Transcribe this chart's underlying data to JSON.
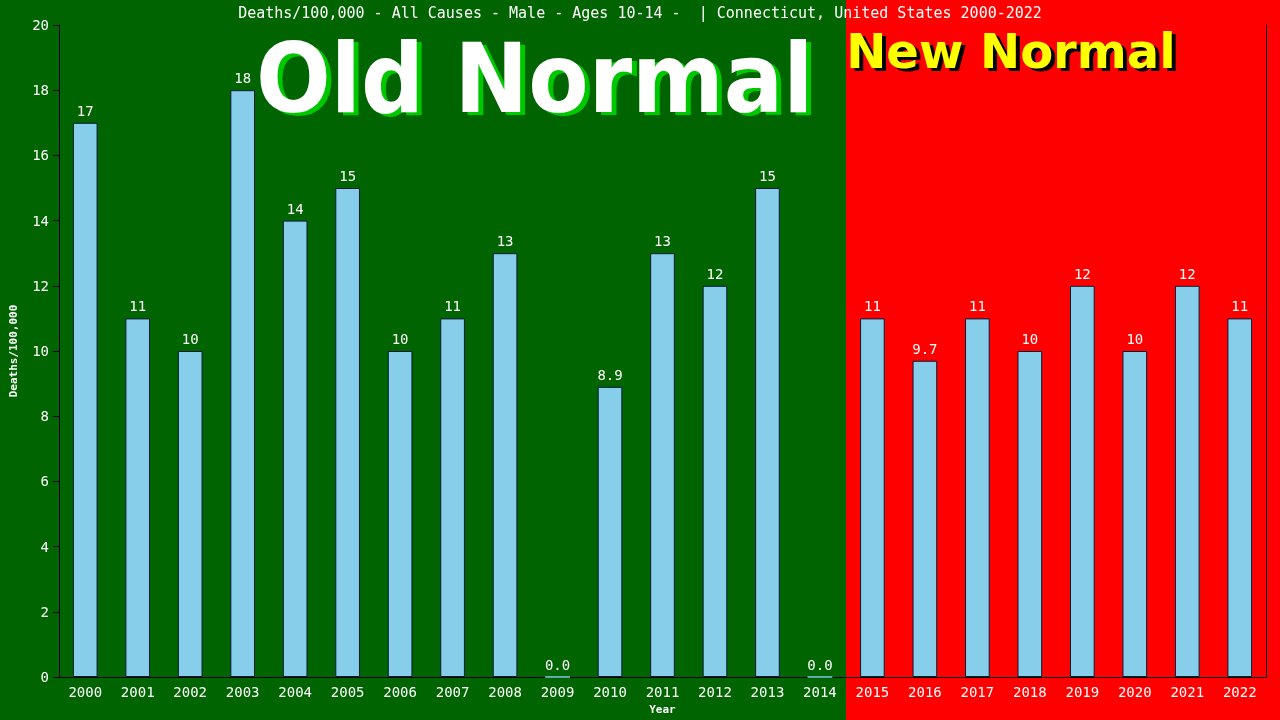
{
  "chart_data": {
    "type": "bar",
    "title": "Deaths/100,000 - All Causes - Male - Ages 10-14 -  | Connecticut, United States 2000-2022",
    "xlabel": "Year",
    "ylabel": "Deaths/100,000",
    "categories": [
      "2000",
      "2001",
      "2002",
      "2003",
      "2004",
      "2005",
      "2006",
      "2007",
      "2008",
      "2009",
      "2010",
      "2011",
      "2012",
      "2013",
      "2014",
      "2015",
      "2016",
      "2017",
      "2018",
      "2019",
      "2020",
      "2021",
      "2022"
    ],
    "values": [
      17,
      11,
      10,
      18,
      14,
      15,
      10,
      11,
      13,
      0,
      8.9,
      13,
      12,
      15,
      0,
      11,
      9.7,
      11,
      10,
      12,
      10,
      12,
      11
    ],
    "value_labels": [
      "17",
      "11",
      "10",
      "18",
      "14",
      "15",
      "10",
      "11",
      "13",
      "0.0",
      "8.9",
      "13",
      "12",
      "15",
      "0.0",
      "11",
      "9.7",
      "11",
      "10",
      "12",
      "10",
      "12",
      "11"
    ],
    "color": "#87ceeb",
    "ylim": [
      0,
      20
    ],
    "yticks": [
      0,
      2,
      4,
      6,
      8,
      10,
      12,
      14,
      16,
      18,
      20
    ],
    "grid": false,
    "bands": [
      {
        "axis": "x",
        "from": "2000",
        "to": "2014",
        "label": "Old Normal",
        "color": "#006400"
      },
      {
        "axis": "x",
        "from": "2015",
        "to": "2022",
        "label": "New Normal",
        "color": "#ff0000"
      }
    ]
  }
}
